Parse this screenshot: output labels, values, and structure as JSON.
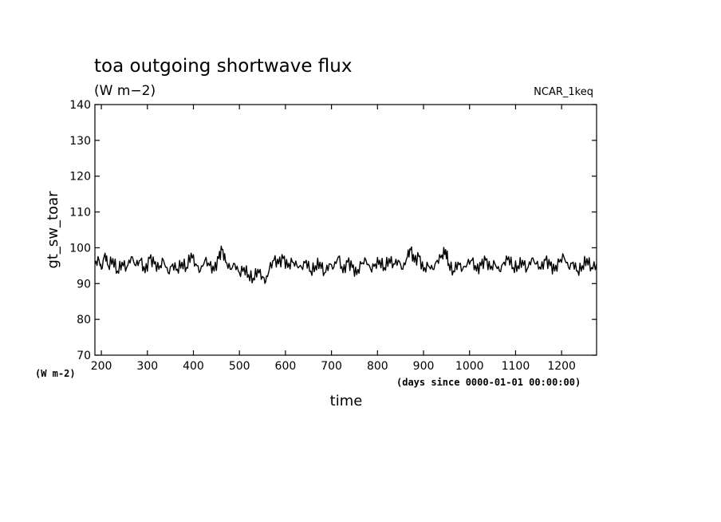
{
  "chart_data": {
    "type": "line",
    "title": "toa outgoing shortwave flux",
    "units": "(W m−2)",
    "source_label": "NCAR_1keq",
    "xlabel": "time",
    "x_units": "(days since 0000-01-01 00:00:00)",
    "ylabel": "gt_sw_toar",
    "y_units": "(W m-2)",
    "xlim": [
      186,
      1276
    ],
    "ylim": [
      70,
      140
    ],
    "x_ticks": [
      200,
      300,
      400,
      500,
      600,
      700,
      800,
      900,
      1000,
      1100,
      1200
    ],
    "x_tick_labels": [
      "200",
      "300",
      "400",
      "500",
      "600",
      "700",
      "800",
      "900",
      "1000",
      "1100",
      "1200"
    ],
    "y_ticks": [
      70,
      80,
      90,
      100,
      110,
      120,
      130,
      140
    ],
    "y_tick_labels": [
      "70",
      "80",
      "90",
      "100",
      "110",
      "120",
      "130",
      "140"
    ],
    "grid": false,
    "series": [
      {
        "color": "#000000",
        "x": [
          186,
          195,
          200,
          208,
          215,
          225,
          235,
          245,
          255,
          265,
          275,
          285,
          295,
          305,
          315,
          325,
          335,
          345,
          355,
          365,
          375,
          385,
          395,
          405,
          415,
          425,
          435,
          445,
          455,
          462,
          470,
          480,
          490,
          500,
          510,
          520,
          530,
          540,
          550,
          557,
          565,
          575,
          585,
          595,
          605,
          615,
          625,
          635,
          645,
          655,
          665,
          675,
          685,
          695,
          705,
          715,
          725,
          735,
          745,
          755,
          765,
          775,
          785,
          795,
          805,
          815,
          825,
          835,
          845,
          855,
          865,
          872,
          880,
          890,
          900,
          910,
          920,
          930,
          940,
          948,
          955,
          965,
          975,
          985,
          995,
          1005,
          1015,
          1025,
          1035,
          1045,
          1055,
          1065,
          1075,
          1085,
          1095,
          1105,
          1115,
          1125,
          1135,
          1145,
          1155,
          1165,
          1175,
          1185,
          1195,
          1205,
          1215,
          1225,
          1235,
          1245,
          1255,
          1265,
          1276
        ],
        "y": [
          95.5,
          96.5,
          94.0,
          98.5,
          95.0,
          97.0,
          93.5,
          96.0,
          94.5,
          97.5,
          95.0,
          96.5,
          93.0,
          97.0,
          95.5,
          94.0,
          96.5,
          93.0,
          95.5,
          94.0,
          96.0,
          94.5,
          98.5,
          95.5,
          93.5,
          96.5,
          95.0,
          93.5,
          97.0,
          99.5,
          96.0,
          94.0,
          95.5,
          93.0,
          94.5,
          92.5,
          91.5,
          94.0,
          92.0,
          90.5,
          94.0,
          96.5,
          95.5,
          97.0,
          94.5,
          96.0,
          95.0,
          94.5,
          96.5,
          93.5,
          95.0,
          96.0,
          93.0,
          95.5,
          94.5,
          97.5,
          93.0,
          96.0,
          94.5,
          92.5,
          95.5,
          96.5,
          94.0,
          95.5,
          96.5,
          94.5,
          97.0,
          95.5,
          96.5,
          94.0,
          97.5,
          99.5,
          96.0,
          97.5,
          93.5,
          95.0,
          94.0,
          96.5,
          98.0,
          99.5,
          95.5,
          93.5,
          96.0,
          94.0,
          95.5,
          96.5,
          93.5,
          95.0,
          96.5,
          94.0,
          95.5,
          93.5,
          96.0,
          97.5,
          94.5,
          95.0,
          96.5,
          94.0,
          97.0,
          95.5,
          94.0,
          96.5,
          95.0,
          93.5,
          96.0,
          97.5,
          94.5,
          96.0,
          93.5,
          95.0,
          97.0,
          94.5,
          95.5
        ]
      }
    ]
  }
}
